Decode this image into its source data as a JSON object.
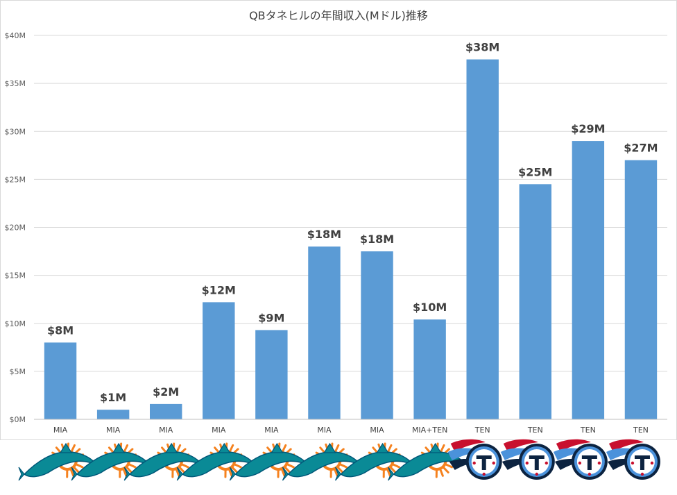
{
  "chart_data": {
    "type": "bar",
    "title": "QBタネヒルの年間収入(Mドル)推移",
    "xlabel": "",
    "ylabel": "",
    "ylim": [
      0,
      40
    ],
    "yticks": [
      "$0M",
      "$5M",
      "$10M",
      "$15M",
      "$20M",
      "$25M",
      "$30M",
      "$35M",
      "$40M"
    ],
    "categories": [
      "MIA",
      "MIA",
      "MIA",
      "MIA",
      "MIA",
      "MIA",
      "MIA",
      "MIA+TEN",
      "TEN",
      "TEN",
      "TEN",
      "TEN"
    ],
    "values": [
      8.0,
      1.0,
      1.6,
      12.2,
      9.3,
      18.0,
      17.5,
      10.4,
      37.5,
      24.5,
      29.0,
      27.0
    ],
    "data_labels": [
      "$8M",
      "$1M",
      "$2M",
      "$12M",
      "$9M",
      "$18M",
      "$18M",
      "$10M",
      "$38M",
      "$25M",
      "$29M",
      "$27M"
    ],
    "grid": true,
    "legend": "none",
    "bar_color": "#5b9bd5",
    "team_logos": [
      "dolphins-logo",
      "dolphins-logo",
      "dolphins-logo",
      "dolphins-logo",
      "dolphins-logo",
      "dolphins-logo",
      "dolphins-logo",
      "dolphins-logo",
      "titans-logo",
      "titans-logo",
      "titans-logo",
      "titans-logo"
    ]
  }
}
